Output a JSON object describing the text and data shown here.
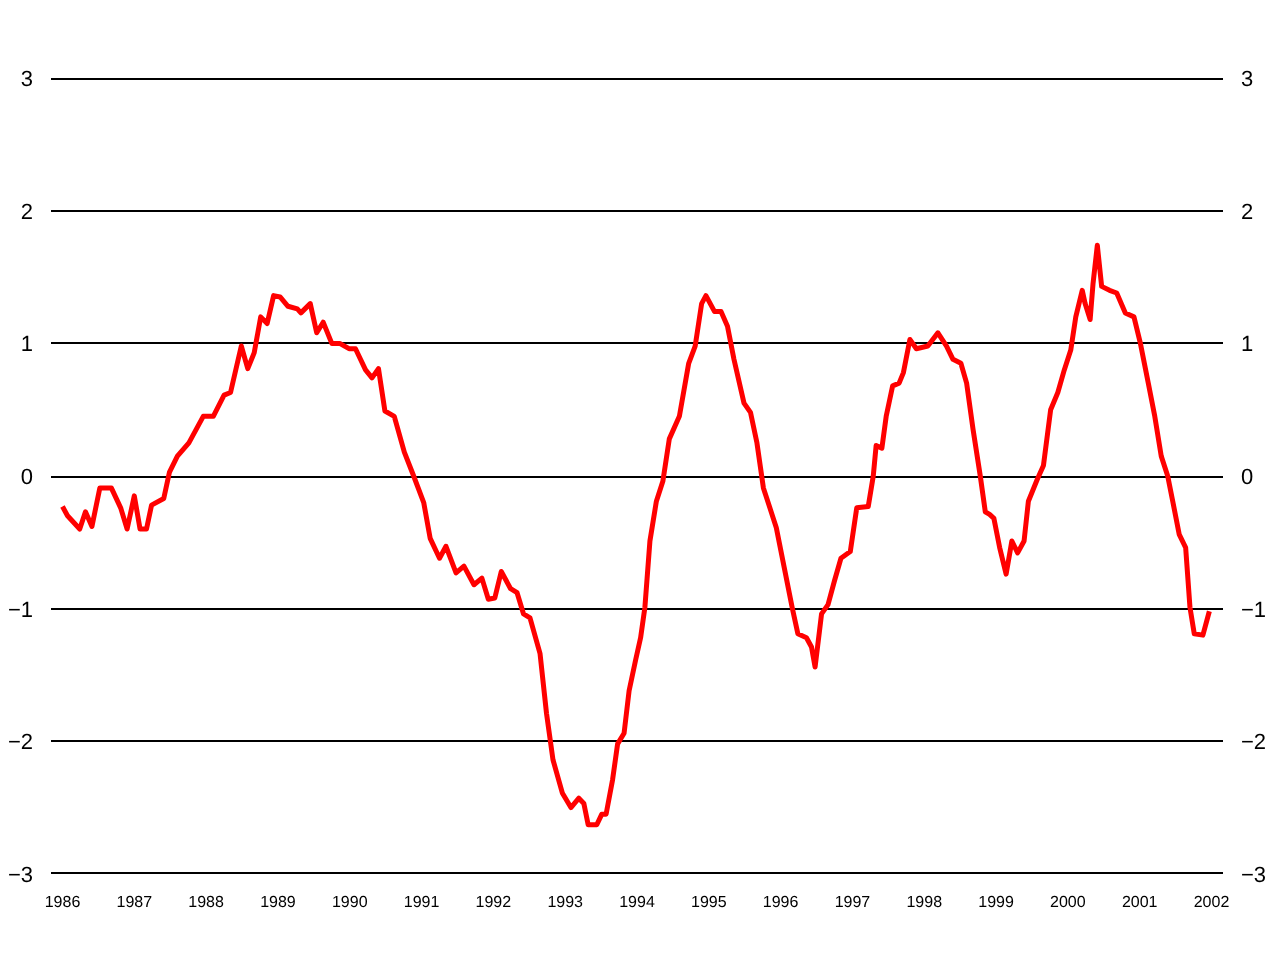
{
  "chart_data": {
    "type": "line",
    "line_style": "solid",
    "marker": "none",
    "grid": "y",
    "xlim": [
      1985.84,
      2002.16
    ],
    "xticks": [
      1986,
      1987,
      1988,
      1989,
      1990,
      1991,
      1992,
      1993,
      1994,
      1995,
      1996,
      1997,
      1998,
      1999,
      2000,
      2001,
      2002
    ],
    "ylim": [
      -3,
      3
    ],
    "yticks": [
      -3,
      -2,
      -1,
      0,
      1,
      2,
      3
    ],
    "y2lim": [
      -3,
      3
    ],
    "y2ticks": [
      -3,
      -2,
      -1,
      0,
      1,
      2,
      3
    ],
    "series": [
      {
        "color": "#ff0000",
        "x": [
          1986.0,
          1986.07,
          1986.24,
          1986.32,
          1986.41,
          1986.52,
          1986.68,
          1986.81,
          1986.9,
          1987.0,
          1987.08,
          1987.17,
          1987.24,
          1987.41,
          1987.49,
          1987.6,
          1987.76,
          1987.96,
          1988.1,
          1988.25,
          1988.34,
          1988.49,
          1988.58,
          1988.67,
          1988.76,
          1988.85,
          1988.94,
          1989.03,
          1989.14,
          1989.27,
          1989.32,
          1989.45,
          1989.54,
          1989.63,
          1989.75,
          1989.86,
          1989.99,
          1990.08,
          1990.22,
          1990.31,
          1990.4,
          1990.49,
          1990.62,
          1990.76,
          1990.89,
          1991.03,
          1991.12,
          1991.25,
          1991.34,
          1991.48,
          1991.59,
          1991.73,
          1991.84,
          1991.93,
          1992.02,
          1992.11,
          1992.24,
          1992.33,
          1992.42,
          1992.51,
          1992.65,
          1992.74,
          1992.83,
          1992.96,
          1993.08,
          1993.19,
          1993.26,
          1993.32,
          1993.44,
          1993.51,
          1993.57,
          1993.66,
          1993.73,
          1993.82,
          1993.89,
          1993.98,
          1994.05,
          1994.11,
          1994.18,
          1994.27,
          1994.36,
          1994.45,
          1994.59,
          1994.72,
          1994.81,
          1994.9,
          1994.96,
          1995.08,
          1995.17,
          1995.26,
          1995.35,
          1995.49,
          1995.58,
          1995.67,
          1995.76,
          1995.85,
          1995.94,
          1996.05,
          1996.16,
          1996.24,
          1996.36,
          1996.43,
          1996.48,
          1996.57,
          1996.66,
          1996.75,
          1996.84,
          1996.97,
          1997.06,
          1997.22,
          1997.29,
          1997.33,
          1997.41,
          1997.47,
          1997.56,
          1997.65,
          1997.71,
          1997.8,
          1997.89,
          1998.05,
          1998.19,
          1998.31,
          1998.4,
          1998.51,
          1998.59,
          1998.68,
          1998.78,
          1998.85,
          1998.91,
          1998.97,
          1999.05,
          1999.14,
          1999.22,
          1999.3,
          1999.39,
          1999.45,
          1999.57,
          1999.66,
          1999.76,
          1999.86,
          1999.95,
          2000.04,
          2000.11,
          2000.2,
          2000.24,
          2000.31,
          2000.35,
          2000.41,
          2000.47,
          2000.58,
          2000.68,
          2000.8,
          2000.92,
          2001.01,
          2001.12,
          2001.21,
          2001.3,
          2001.39,
          2001.46,
          2001.55,
          2001.64,
          2001.7,
          2001.76,
          2001.88,
          2001.97
        ],
        "values": [
          -0.23,
          -0.3,
          -0.4,
          -0.27,
          -0.38,
          -0.09,
          -0.09,
          -0.24,
          -0.4,
          -0.15,
          -0.4,
          -0.4,
          -0.22,
          -0.17,
          0.03,
          0.15,
          0.25,
          0.45,
          0.45,
          0.61,
          0.63,
          0.98,
          0.81,
          0.93,
          1.2,
          1.15,
          1.36,
          1.35,
          1.28,
          1.26,
          1.23,
          1.3,
          1.08,
          1.16,
          1.0,
          1.0,
          0.96,
          0.96,
          0.8,
          0.74,
          0.81,
          0.49,
          0.45,
          0.18,
          0.0,
          -0.2,
          -0.47,
          -0.62,
          -0.53,
          -0.73,
          -0.68,
          -0.82,
          -0.77,
          -0.93,
          -0.92,
          -0.72,
          -0.85,
          -0.88,
          -1.04,
          -1.07,
          -1.34,
          -1.79,
          -2.14,
          -2.39,
          -2.5,
          -2.43,
          -2.47,
          -2.63,
          -2.63,
          -2.55,
          -2.55,
          -2.29,
          -2.02,
          -1.94,
          -1.62,
          -1.39,
          -1.22,
          -0.99,
          -0.49,
          -0.19,
          -0.04,
          0.28,
          0.45,
          0.85,
          0.98,
          1.3,
          1.36,
          1.24,
          1.24,
          1.13,
          0.88,
          0.55,
          0.48,
          0.25,
          -0.09,
          -0.24,
          -0.39,
          -0.69,
          -0.99,
          -1.19,
          -1.22,
          -1.29,
          -1.44,
          -1.04,
          -0.97,
          -0.79,
          -0.62,
          -0.57,
          -0.24,
          -0.23,
          0.0,
          0.23,
          0.21,
          0.45,
          0.68,
          0.7,
          0.78,
          1.03,
          0.96,
          0.98,
          1.08,
          0.98,
          0.88,
          0.85,
          0.7,
          0.35,
          0.0,
          -0.27,
          -0.29,
          -0.32,
          -0.54,
          -0.74,
          -0.49,
          -0.58,
          -0.49,
          -0.19,
          -0.03,
          0.08,
          0.5,
          0.63,
          0.8,
          0.95,
          1.2,
          1.4,
          1.3,
          1.18,
          1.45,
          1.74,
          1.43,
          1.4,
          1.38,
          1.23,
          1.2,
          1.0,
          0.7,
          0.45,
          0.15,
          0.0,
          -0.19,
          -0.44,
          -0.54,
          -0.99,
          -1.19,
          -1.2,
          -1.02
        ]
      }
    ]
  }
}
